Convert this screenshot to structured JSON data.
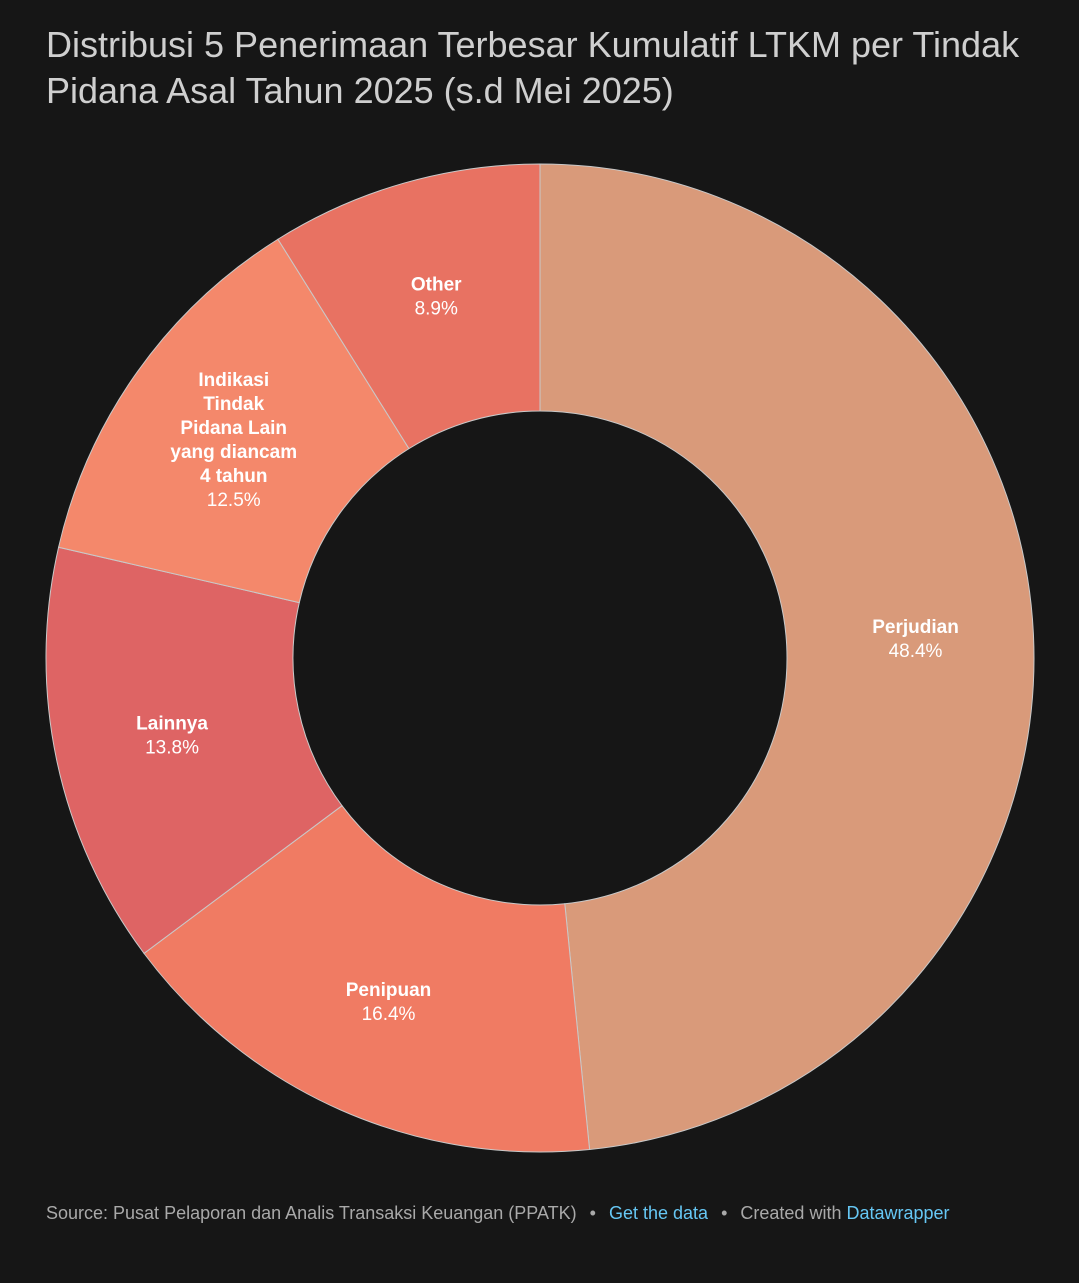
{
  "title": "Distribusi 5 Penerimaan Terbesar Kumulatif LTKM per Tindak Pidana Asal Tahun 2025 (s.d Mei 2025)",
  "chart_data": {
    "type": "pie",
    "variant": "donut",
    "title": "Distribusi 5 Penerimaan Terbesar Kumulatif LTKM per Tindak Pidana Asal Tahun 2025 (s.d Mei 2025)",
    "unit": "%",
    "slices": [
      {
        "label": "Perjudian",
        "value": 48.4,
        "value_label": "48.4%",
        "color": "#d99a7a"
      },
      {
        "label": "Penipuan",
        "value": 16.4,
        "value_label": "16.4%",
        "color": "#f07b63"
      },
      {
        "label": "Lainnya",
        "value": 13.8,
        "value_label": "13.8%",
        "color": "#de6464"
      },
      {
        "label": "Indikasi Tindak Pidana Lain yang diancam 4 tahun",
        "label_lines": [
          "Indikasi",
          "Tindak",
          "Pidana Lain",
          "yang diancam",
          "4 tahun"
        ],
        "value": 12.5,
        "value_label": "12.5%",
        "color": "#f4886b"
      },
      {
        "label": "Other",
        "value": 8.9,
        "value_label": "8.9%",
        "color": "#e87262"
      }
    ]
  },
  "footer": {
    "source": "Source: Pusat Pelaporan dan Analis Transaksi Keuangan (PPATK)",
    "separator": "•",
    "get_data": "Get the data",
    "created_with": "Created with",
    "tool": "Datawrapper"
  },
  "colors": {
    "background": "#161616",
    "link": "#66c7f4"
  }
}
